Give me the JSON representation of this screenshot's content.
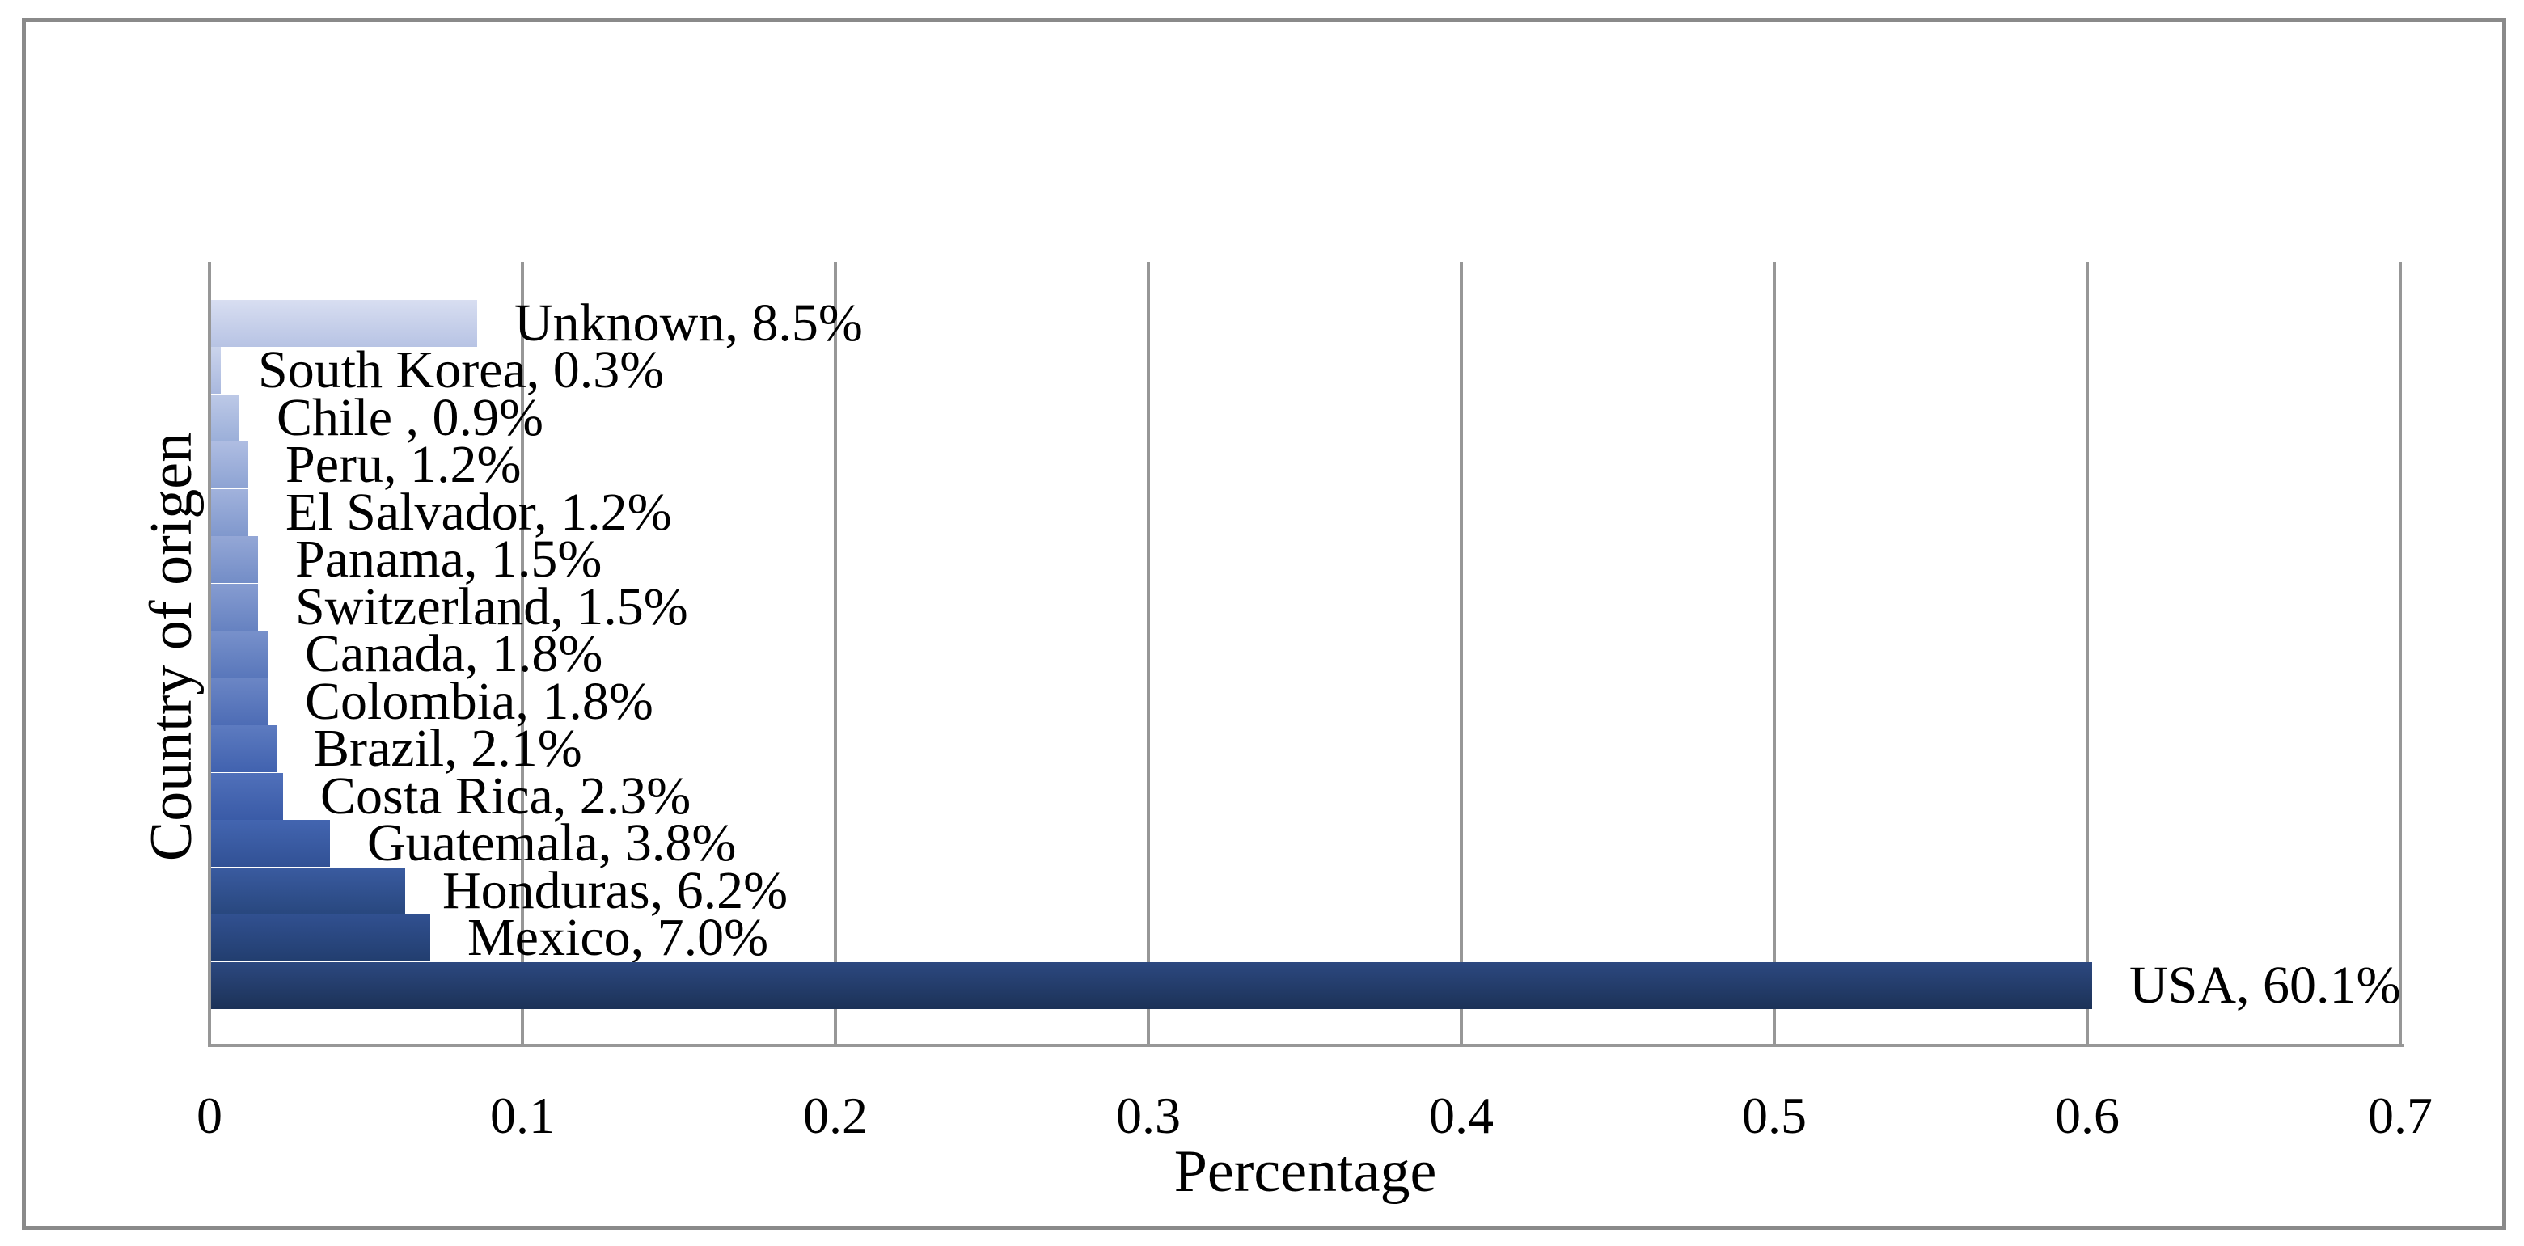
{
  "figure": {
    "frame_border_color": "#8a8a8a",
    "background_color": "#ffffff"
  },
  "chart_data": {
    "type": "bar",
    "orientation": "horizontal",
    "title": "",
    "xlabel": "Percentage",
    "ylabel": "Country of origen",
    "xlim": [
      0,
      0.7
    ],
    "x_ticks": [
      "0",
      "0.1",
      "0.2",
      "0.3",
      "0.4",
      "0.5",
      "0.6",
      "0.7"
    ],
    "grid": true,
    "gridline_color": "#979797",
    "legend_position": "none",
    "categories": [
      "Unknown",
      "South Korea",
      "Chile",
      "Peru",
      "El Salvador",
      "Panama",
      "Switzerland",
      "Canada",
      "Colombia",
      "Brazil",
      "Costa Rica",
      "Guatemala",
      "Honduras",
      "Mexico",
      "USA"
    ],
    "values_percent": [
      8.5,
      0.3,
      0.9,
      1.2,
      1.2,
      1.5,
      1.5,
      1.8,
      1.8,
      2.1,
      2.3,
      3.8,
      6.2,
      7.0,
      60.1
    ],
    "data_labels": [
      "Unknown, 8.5%",
      "South Korea, 0.3%",
      "Chile , 0.9%",
      "Peru, 1.2%",
      "El Salvador, 1.2%",
      "Panama, 1.5%",
      "Switzerland, 1.5%",
      "Canada, 1.8%",
      "Colombia, 1.8%",
      "Brazil, 2.1%",
      "Costa Rica, 2.3%",
      "Guatemala, 3.8%",
      "Honduras, 6.2%",
      "Mexico, 7.0%",
      "USA, 60.1%"
    ],
    "bar_gradients": [
      {
        "top": "#d8def1",
        "bottom": "#b7c3e4"
      },
      {
        "top": "#cbd4ec",
        "bottom": "#a9b8de"
      },
      {
        "top": "#bdc9e7",
        "bottom": "#9bafd9"
      },
      {
        "top": "#afbde2",
        "bottom": "#8da3d3"
      },
      {
        "top": "#a1b2dc",
        "bottom": "#8098cd"
      },
      {
        "top": "#94a7d6",
        "bottom": "#738dc7"
      },
      {
        "top": "#869cd1",
        "bottom": "#6682c1"
      },
      {
        "top": "#7891cb",
        "bottom": "#5977bb"
      },
      {
        "top": "#6b86c5",
        "bottom": "#4d6cb5"
      },
      {
        "top": "#5d7bc0",
        "bottom": "#4162af"
      },
      {
        "top": "#5070ba",
        "bottom": "#3a5ba7"
      },
      {
        "top": "#4365b0",
        "bottom": "#315195"
      },
      {
        "top": "#3a5ba0",
        "bottom": "#28477e"
      },
      {
        "top": "#315090",
        "bottom": "#223e6f"
      },
      {
        "top": "#2c4880",
        "bottom": "#1c3257"
      }
    ]
  }
}
